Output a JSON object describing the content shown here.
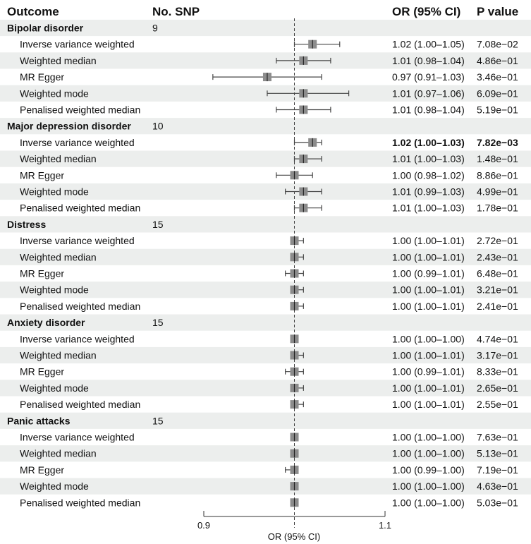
{
  "chart_data": {
    "type": "forest",
    "headers": {
      "outcome": "Outcome",
      "nsnp": "No. SNP",
      "or_ci": "OR (95% CI)",
      "pvalue": "P value"
    },
    "xlabel": "OR (95% CI)",
    "xlim": [
      0.9,
      1.1
    ],
    "xticks": [
      "0.9",
      "1.1"
    ],
    "reference_line": 1.0,
    "colors": {
      "stripe": "#eceeed",
      "marker": "#8c8c8c",
      "line": "#444444"
    },
    "groups": [
      {
        "outcome": "Bipolar disorder",
        "nsnp": "9",
        "rows": [
          {
            "method": "Inverse variance weighted",
            "or": 1.02,
            "lo": 1.0,
            "hi": 1.05,
            "or_ci": "1.02 (1.00–1.05)",
            "p": "7.08e−02",
            "bold": false
          },
          {
            "method": "Weighted median",
            "or": 1.01,
            "lo": 0.98,
            "hi": 1.04,
            "or_ci": "1.01 (0.98–1.04)",
            "p": "4.86e−01",
            "bold": false
          },
          {
            "method": "MR Egger",
            "or": 0.97,
            "lo": 0.91,
            "hi": 1.03,
            "or_ci": "0.97 (0.91–1.03)",
            "p": "3.46e−01",
            "bold": false
          },
          {
            "method": "Weighted mode",
            "or": 1.01,
            "lo": 0.97,
            "hi": 1.06,
            "or_ci": "1.01 (0.97–1.06)",
            "p": "6.09e−01",
            "bold": false
          },
          {
            "method": "Penalised weighted median",
            "or": 1.01,
            "lo": 0.98,
            "hi": 1.04,
            "or_ci": "1.01 (0.98–1.04)",
            "p": "5.19e−01",
            "bold": false
          }
        ]
      },
      {
        "outcome": "Major depression disorder",
        "nsnp": "10",
        "rows": [
          {
            "method": "Inverse variance weighted",
            "or": 1.02,
            "lo": 1.0,
            "hi": 1.03,
            "or_ci": "1.02 (1.00–1.03)",
            "p": "7.82e−03",
            "bold": true
          },
          {
            "method": "Weighted median",
            "or": 1.01,
            "lo": 1.0,
            "hi": 1.03,
            "or_ci": "1.01 (1.00–1.03)",
            "p": "1.48e−01",
            "bold": false
          },
          {
            "method": "MR Egger",
            "or": 1.0,
            "lo": 0.98,
            "hi": 1.02,
            "or_ci": "1.00 (0.98–1.02)",
            "p": "8.86e−01",
            "bold": false
          },
          {
            "method": "Weighted mode",
            "or": 1.01,
            "lo": 0.99,
            "hi": 1.03,
            "or_ci": "1.01 (0.99–1.03)",
            "p": "4.99e−01",
            "bold": false
          },
          {
            "method": "Penalised weighted median",
            "or": 1.01,
            "lo": 1.0,
            "hi": 1.03,
            "or_ci": "1.01 (1.00–1.03)",
            "p": "1.78e−01",
            "bold": false
          }
        ]
      },
      {
        "outcome": "Distress",
        "nsnp": "15",
        "rows": [
          {
            "method": "Inverse variance weighted",
            "or": 1.0,
            "lo": 1.0,
            "hi": 1.01,
            "or_ci": "1.00 (1.00–1.01)",
            "p": "2.72e−01",
            "bold": false
          },
          {
            "method": "Weighted median",
            "or": 1.0,
            "lo": 1.0,
            "hi": 1.01,
            "or_ci": "1.00 (1.00–1.01)",
            "p": "2.43e−01",
            "bold": false
          },
          {
            "method": "MR Egger",
            "or": 1.0,
            "lo": 0.99,
            "hi": 1.01,
            "or_ci": "1.00 (0.99–1.01)",
            "p": "6.48e−01",
            "bold": false
          },
          {
            "method": "Weighted mode",
            "or": 1.0,
            "lo": 1.0,
            "hi": 1.01,
            "or_ci": "1.00 (1.00–1.01)",
            "p": "3.21e−01",
            "bold": false
          },
          {
            "method": "Penalised weighted median",
            "or": 1.0,
            "lo": 1.0,
            "hi": 1.01,
            "or_ci": "1.00 (1.00–1.01)",
            "p": "2.41e−01",
            "bold": false
          }
        ]
      },
      {
        "outcome": "Anxiety disorder",
        "nsnp": "15",
        "rows": [
          {
            "method": "Inverse variance weighted",
            "or": 1.0,
            "lo": 1.0,
            "hi": 1.0,
            "or_ci": "1.00 (1.00–1.00)",
            "p": "4.74e−01",
            "bold": false
          },
          {
            "method": "Weighted median",
            "or": 1.0,
            "lo": 1.0,
            "hi": 1.01,
            "or_ci": "1.00 (1.00–1.01)",
            "p": "3.17e−01",
            "bold": false
          },
          {
            "method": "MR Egger",
            "or": 1.0,
            "lo": 0.99,
            "hi": 1.01,
            "or_ci": "1.00 (0.99–1.01)",
            "p": "8.33e−01",
            "bold": false
          },
          {
            "method": "Weighted mode",
            "or": 1.0,
            "lo": 1.0,
            "hi": 1.01,
            "or_ci": "1.00 (1.00–1.01)",
            "p": "2.65e−01",
            "bold": false
          },
          {
            "method": "Penalised weighted median",
            "or": 1.0,
            "lo": 1.0,
            "hi": 1.01,
            "or_ci": "1.00 (1.00–1.01)",
            "p": "2.55e−01",
            "bold": false
          }
        ]
      },
      {
        "outcome": "Panic attacks",
        "nsnp": "15",
        "rows": [
          {
            "method": "Inverse variance weighted",
            "or": 1.0,
            "lo": 1.0,
            "hi": 1.0,
            "or_ci": "1.00 (1.00–1.00)",
            "p": "7.63e−01",
            "bold": false
          },
          {
            "method": "Weighted median",
            "or": 1.0,
            "lo": 1.0,
            "hi": 1.0,
            "or_ci": "1.00 (1.00–1.00)",
            "p": "5.13e−01",
            "bold": false
          },
          {
            "method": "MR Egger",
            "or": 1.0,
            "lo": 0.99,
            "hi": 1.0,
            "or_ci": "1.00 (0.99–1.00)",
            "p": "7.19e−01",
            "bold": false
          },
          {
            "method": "Weighted mode",
            "or": 1.0,
            "lo": 1.0,
            "hi": 1.0,
            "or_ci": "1.00 (1.00–1.00)",
            "p": "4.63e−01",
            "bold": false
          },
          {
            "method": "Penalised weighted median",
            "or": 1.0,
            "lo": 1.0,
            "hi": 1.0,
            "or_ci": "1.00 (1.00–1.00)",
            "p": "5.03e−01",
            "bold": false
          }
        ]
      }
    ]
  }
}
